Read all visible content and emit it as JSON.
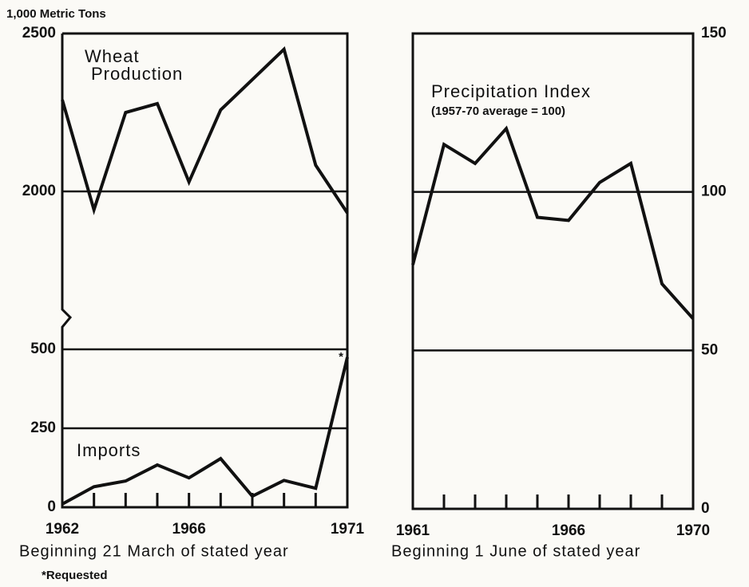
{
  "chart_data": [
    {
      "type": "line",
      "y_label": "1,000 Metric Tons",
      "broken_axis": true,
      "x": [
        1962,
        1963,
        1964,
        1965,
        1966,
        1967,
        1968,
        1969,
        1970,
        1971
      ],
      "xlim": [
        1962,
        1971
      ],
      "xticks": [
        1962,
        1966,
        1971
      ],
      "xlabel": "Beginning 21 March of stated year",
      "footnote": "*Requested",
      "annotation": "*",
      "series": [
        {
          "name": "Wheat Production",
          "color": "#111111",
          "values": [
            2290,
            1942,
            2250,
            2278,
            2030,
            2258,
            2354,
            2450,
            2083,
            1932
          ],
          "ylim": [
            1634,
            2500
          ],
          "yticks": [
            2000,
            2500
          ]
        },
        {
          "name": "Imports",
          "color": "#111111",
          "values": [
            10,
            65,
            83,
            134,
            93,
            154,
            35,
            85,
            60,
            475
          ],
          "ylim": [
            0,
            634
          ],
          "yticks": [
            0,
            250,
            500
          ]
        }
      ]
    },
    {
      "type": "line",
      "title": "Precipitation Index",
      "subtitle": "(1957-70 average = 100)",
      "x": [
        1961,
        1962,
        1963,
        1964,
        1965,
        1966,
        1967,
        1968,
        1969,
        1970
      ],
      "xlim": [
        1961,
        1970
      ],
      "xticks": [
        1961,
        1966,
        1970
      ],
      "xlabel": "Beginning 1 June of stated year",
      "ylim": [
        0,
        150
      ],
      "yticks": [
        0,
        50,
        100,
        150
      ],
      "color": "#111111",
      "values": [
        77,
        115,
        109,
        120,
        92,
        91,
        103,
        109,
        71,
        60
      ]
    }
  ]
}
